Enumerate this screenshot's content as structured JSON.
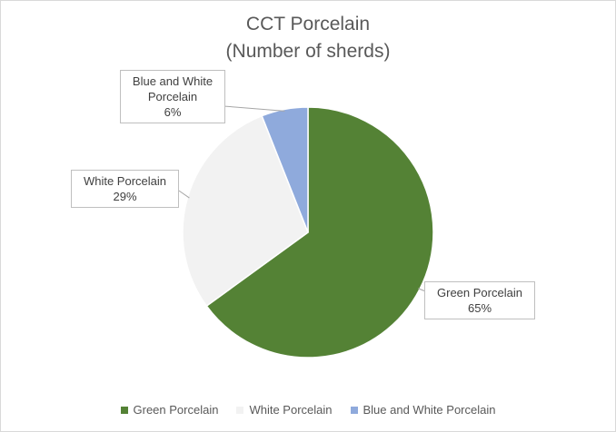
{
  "chart_data": {
    "type": "pie",
    "title": "CCT Porcelain",
    "subtitle": "(Number of sherds)",
    "categories": [
      "Green Porcelain",
      "White Porcelain",
      "Blue and White Porcelain"
    ],
    "values": [
      65,
      29,
      6
    ],
    "data_labels": [
      {
        "lines": [
          "Green Porcelain",
          "65%"
        ]
      },
      {
        "lines": [
          "White Porcelain",
          "29%"
        ]
      },
      {
        "lines": [
          "Blue and White",
          "Porcelain",
          "6%"
        ]
      }
    ],
    "colors": [
      "#548235",
      "#f2f2f2",
      "#8faadc"
    ],
    "start_angle_deg": 0,
    "direction": "clockwise",
    "legend_position": "bottom"
  }
}
